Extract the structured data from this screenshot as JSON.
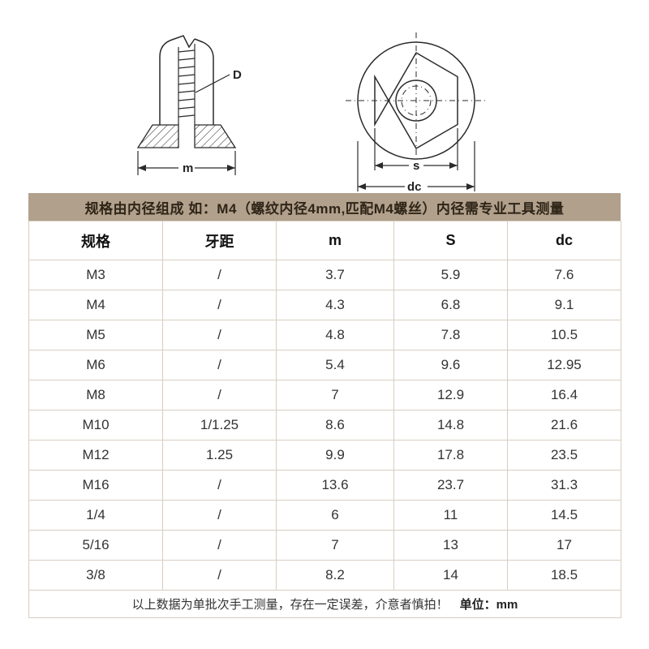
{
  "colors": {
    "banner_bg": "#b1a08b",
    "banner_text": "#2e2417",
    "table_border": "#d8cec1",
    "text_dark": "#111111",
    "text_body": "#333333"
  },
  "banner": {
    "text": "规格由内径组成  如：M4（螺纹内径4mm,匹配M4螺丝）内径需专业工具测量"
  },
  "diagram": {
    "side_view": {
      "label_d": "D",
      "label_m": "m"
    },
    "top_view": {
      "label_s": "s",
      "label_dc": "dc"
    }
  },
  "table": {
    "columns": [
      "规格",
      "牙距",
      "m",
      "S",
      "dc"
    ],
    "rows": [
      [
        "M3",
        "/",
        "3.7",
        "5.9",
        "7.6"
      ],
      [
        "M4",
        "/",
        "4.3",
        "6.8",
        "9.1"
      ],
      [
        "M5",
        "/",
        "4.8",
        "7.8",
        "10.5"
      ],
      [
        "M6",
        "/",
        "5.4",
        "9.6",
        "12.95"
      ],
      [
        "M8",
        "/",
        "7",
        "12.9",
        "16.4"
      ],
      [
        "M10",
        "1/1.25",
        "8.6",
        "14.8",
        "21.6"
      ],
      [
        "M12",
        "1.25",
        "9.9",
        "17.8",
        "23.5"
      ],
      [
        "M16",
        "/",
        "13.6",
        "23.7",
        "31.3"
      ],
      [
        "1/4",
        "/",
        "6",
        "11",
        "14.5"
      ],
      [
        "5/16",
        "/",
        "7",
        "13",
        "17"
      ],
      [
        "3/8",
        "/",
        "8.2",
        "14",
        "18.5"
      ]
    ],
    "footnote": "以上数据为单批次手工测量，存在一定误差，介意者慎拍！",
    "unit": "单位：mm"
  }
}
